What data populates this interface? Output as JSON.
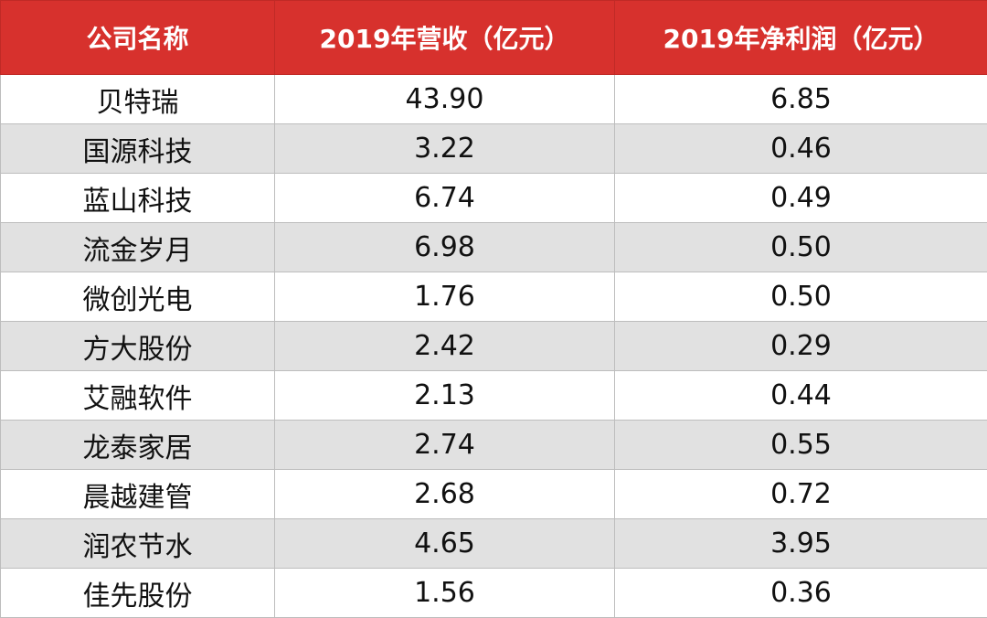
{
  "table": {
    "header": [
      "公司名称",
      "2019年营收（亿元）",
      "2019年净利润（亿元）"
    ],
    "rows": [
      [
        "贝特瑞",
        "43.90",
        "6.85"
      ],
      [
        "国源科技",
        "3.22",
        "0.46"
      ],
      [
        "蓝山科技",
        "6.74",
        "0.49"
      ],
      [
        "流金岁月",
        "6.98",
        "0.50"
      ],
      [
        "微创光电",
        "1.76",
        "0.50"
      ],
      [
        "方大股份",
        "2.42",
        "0.29"
      ],
      [
        "艾融软件",
        "2.13",
        "0.44"
      ],
      [
        "龙泰家居",
        "2.74",
        "0.55"
      ],
      [
        "晨越建管",
        "2.68",
        "0.72"
      ],
      [
        "润农节水",
        "4.65",
        "3.95"
      ],
      [
        "佳先股份",
        "1.56",
        "0.36"
      ]
    ]
  }
}
